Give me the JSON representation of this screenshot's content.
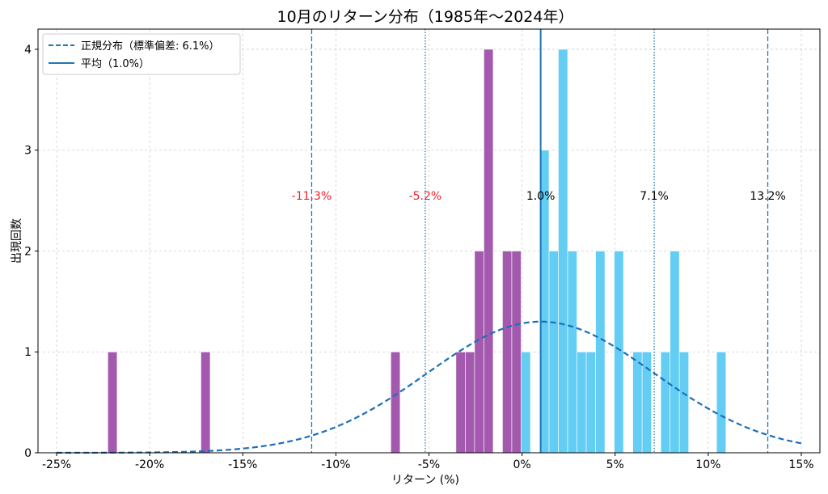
{
  "chart_data": {
    "type": "bar",
    "title": "10月のリターン分布（1985年〜2024年）",
    "xlabel": "リターン (%)",
    "ylabel": "出現回数",
    "xlim": [
      -26,
      16
    ],
    "ylim": [
      0,
      4.2
    ],
    "xticks": [
      {
        "value": -25,
        "label": "-25%"
      },
      {
        "value": -20,
        "label": "-20%"
      },
      {
        "value": -15,
        "label": "-15%"
      },
      {
        "value": -10,
        "label": "-10%"
      },
      {
        "value": -5,
        "label": "-5%"
      },
      {
        "value": 0,
        "label": "0%"
      },
      {
        "value": 5,
        "label": "5%"
      },
      {
        "value": 10,
        "label": "10%"
      },
      {
        "value": 15,
        "label": "15%"
      }
    ],
    "yticks": [
      {
        "value": 0,
        "label": "0"
      },
      {
        "value": 1,
        "label": "1"
      },
      {
        "value": 2,
        "label": "2"
      },
      {
        "value": 3,
        "label": "3"
      },
      {
        "value": 4,
        "label": "4"
      }
    ],
    "bin_width": 0.5,
    "bars": [
      {
        "x": -22.0,
        "count": 1,
        "group": "negative"
      },
      {
        "x": -17.0,
        "count": 1,
        "group": "negative"
      },
      {
        "x": -6.8,
        "count": 1,
        "group": "negative"
      },
      {
        "x": -3.3,
        "count": 1,
        "group": "negative"
      },
      {
        "x": -2.8,
        "count": 1,
        "group": "negative"
      },
      {
        "x": -2.3,
        "count": 2,
        "group": "negative"
      },
      {
        "x": -1.8,
        "count": 4,
        "group": "negative"
      },
      {
        "x": -0.8,
        "count": 2,
        "group": "negative"
      },
      {
        "x": -0.3,
        "count": 2,
        "group": "negative"
      },
      {
        "x": 0.2,
        "count": 1,
        "group": "positive"
      },
      {
        "x": 1.2,
        "count": 3,
        "group": "positive"
      },
      {
        "x": 1.7,
        "count": 2,
        "group": "positive"
      },
      {
        "x": 2.2,
        "count": 4,
        "group": "positive"
      },
      {
        "x": 2.7,
        "count": 2,
        "group": "positive"
      },
      {
        "x": 3.2,
        "count": 1,
        "group": "positive"
      },
      {
        "x": 3.7,
        "count": 1,
        "group": "positive"
      },
      {
        "x": 4.2,
        "count": 2,
        "group": "positive"
      },
      {
        "x": 5.2,
        "count": 2,
        "group": "positive"
      },
      {
        "x": 6.2,
        "count": 1,
        "group": "positive"
      },
      {
        "x": 6.7,
        "count": 1,
        "group": "positive"
      },
      {
        "x": 7.7,
        "count": 1,
        "group": "positive"
      },
      {
        "x": 8.2,
        "count": 2,
        "group": "positive"
      },
      {
        "x": 8.7,
        "count": 1,
        "group": "positive"
      },
      {
        "x": 10.7,
        "count": 1,
        "group": "positive"
      }
    ],
    "normal_curve": {
      "mean": 1.0,
      "sd": 6.1,
      "peak": 1.3,
      "x_range": [
        -25,
        15
      ]
    },
    "mean_line": {
      "value": 1.0,
      "label": "1.0%"
    },
    "sd_lines": [
      {
        "value": -11.3,
        "label": "-11.3%",
        "style": "dashed",
        "label_color": "#e8262b"
      },
      {
        "value": -5.2,
        "label": "-5.2%",
        "style": "dotted",
        "label_color": "#e8262b"
      },
      {
        "value": 7.1,
        "label": "7.1%",
        "style": "dotted",
        "label_color": "#000000"
      },
      {
        "value": 13.2,
        "label": "13.2%",
        "style": "dashed",
        "label_color": "#000000"
      }
    ],
    "sd_label_y": 2.55,
    "legend": {
      "placement": "top-left",
      "items": [
        {
          "label": "正規分布（標準偏差: 6.1%）",
          "style": "dashed"
        },
        {
          "label": "平均（1.0%）",
          "style": "solid"
        }
      ]
    },
    "colors": {
      "negative": "#a35aae",
      "positive": "#64cdf4",
      "line": "#1f77b4",
      "curve": "#1a6fb8",
      "negative_tick": "#e8262b",
      "positive_tick": "#000000"
    },
    "grid": true
  }
}
